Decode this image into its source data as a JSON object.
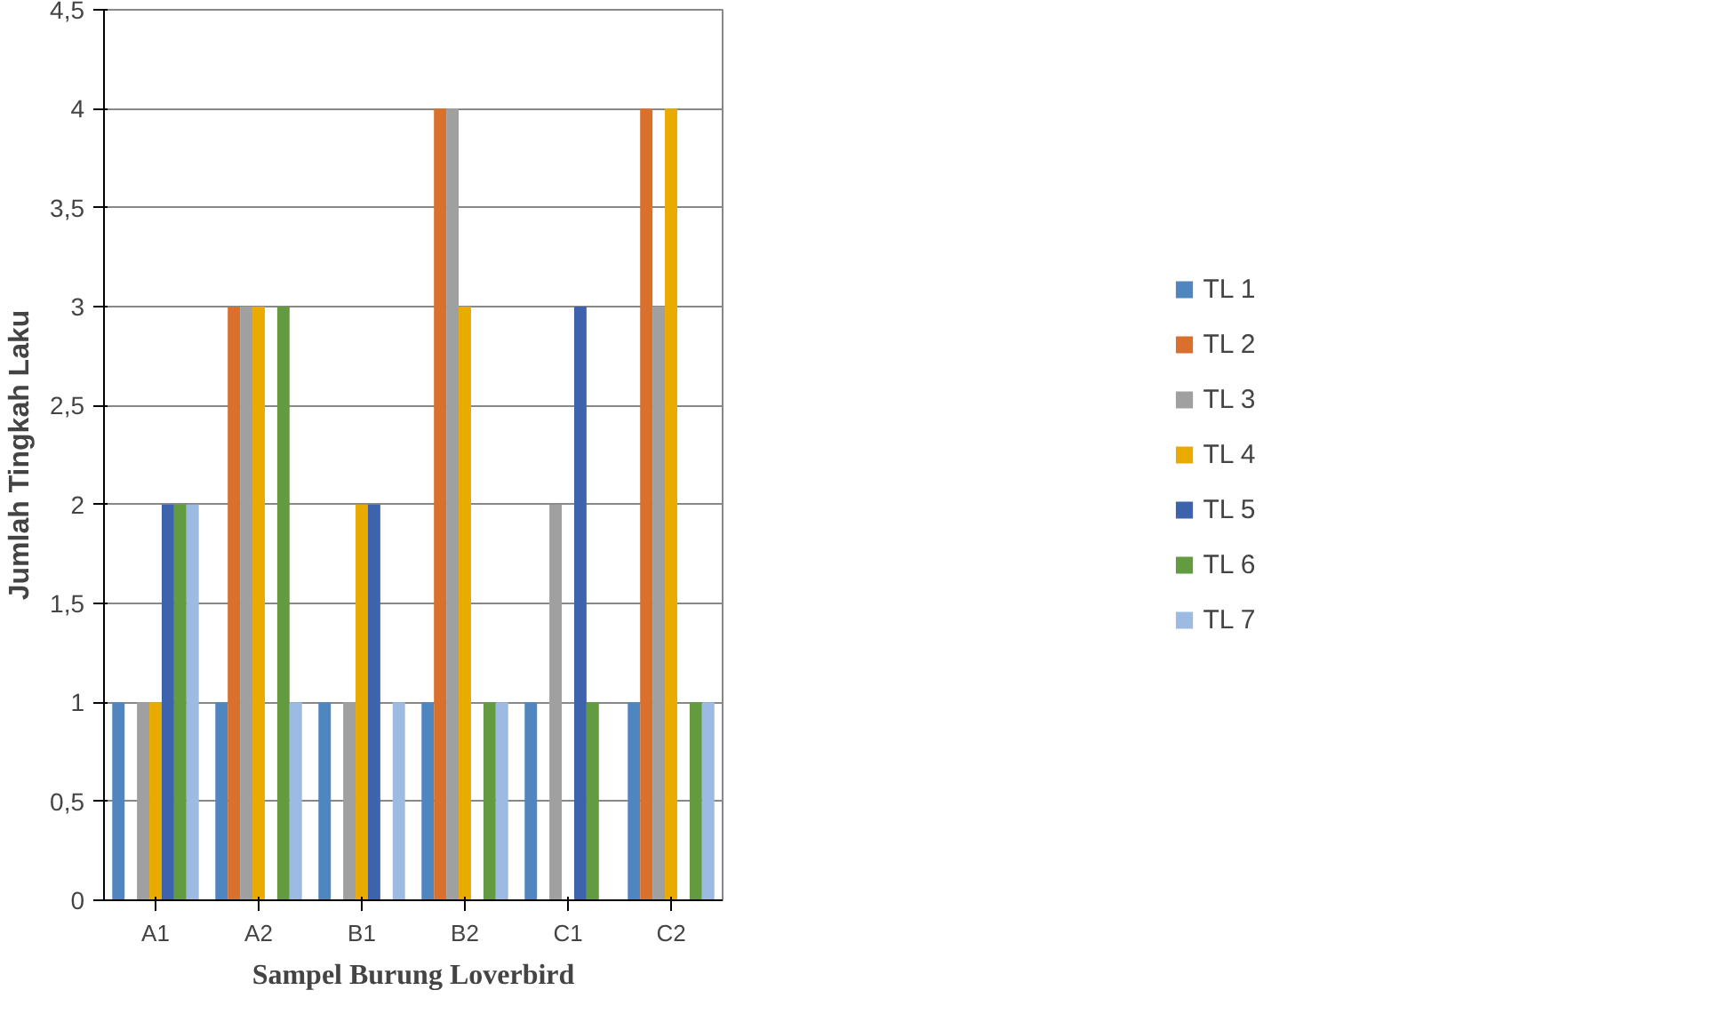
{
  "chart_data": {
    "type": "bar",
    "xlabel": "Sampel Burung Loverbird",
    "ylabel": "Jumlah Tingkah Laku",
    "categories": [
      "A1",
      "A2",
      "B1",
      "B2",
      "C1",
      "C2"
    ],
    "series": [
      {
        "name": "TL 1",
        "color": "#4f86c0",
        "values": [
          1,
          1,
          1,
          1,
          1,
          1
        ]
      },
      {
        "name": "TL 2",
        "color": "#d9702c",
        "values": [
          0,
          3,
          0,
          4,
          0,
          4
        ]
      },
      {
        "name": "TL 3",
        "color": "#a0a0a0",
        "values": [
          1,
          3,
          1,
          4,
          2,
          3
        ]
      },
      {
        "name": "TL 4",
        "color": "#e9ab00",
        "values": [
          1,
          3,
          2,
          3,
          0,
          4
        ]
      },
      {
        "name": "TL 5",
        "color": "#3d63ac",
        "values": [
          2,
          0,
          2,
          0,
          3,
          0
        ]
      },
      {
        "name": "TL 6",
        "color": "#629b40",
        "values": [
          2,
          3,
          0,
          1,
          1,
          1
        ]
      },
      {
        "name": "TL 7",
        "color": "#9dbbe2",
        "values": [
          2,
          1,
          1,
          1,
          0,
          1
        ]
      }
    ],
    "ylim": [
      0,
      4.5
    ],
    "yticks": [
      0,
      {
        "value": 0.5,
        "label": "0,5"
      },
      1,
      {
        "value": 1.5,
        "label": "1,5"
      },
      2,
      {
        "value": 2.5,
        "label": "2,5"
      },
      3,
      {
        "value": 3.5,
        "label": "3,5"
      },
      4,
      {
        "value": 4.5,
        "label": "4,5"
      }
    ],
    "grid": "y",
    "legend": "right"
  }
}
